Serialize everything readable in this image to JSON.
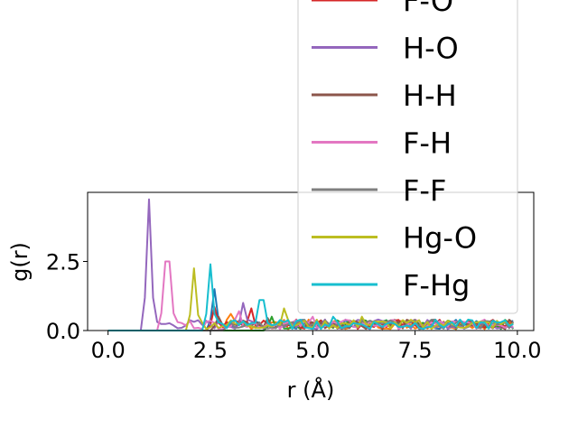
{
  "chart_data": {
    "type": "line",
    "xlabel": "r (Å)",
    "ylabel": "g(r)",
    "xlim": [
      -0.5,
      10.4
    ],
    "ylim": [
      0,
      5.0
    ],
    "xticks": [
      "0.0",
      "2.5",
      "5.0",
      "7.5",
      "10.0"
    ],
    "yticks": [
      "0.0",
      "2.5"
    ],
    "grid": false,
    "legend_placement": "upper-right, overflowing above axes",
    "series": [
      {
        "name": "F-O",
        "color": "#d62728",
        "peaks": [
          [
            2.6,
            0.85
          ],
          [
            3.5,
            0.8
          ],
          [
            4.6,
            0.4
          ]
        ]
      },
      {
        "name": "H-O",
        "color": "#9467bd",
        "peaks": [
          [
            1.0,
            4.75
          ],
          [
            3.3,
            1.0
          ],
          [
            5.3,
            0.4
          ]
        ]
      },
      {
        "name": "H-H",
        "color": "#8c564b",
        "peaks": [
          [
            2.7,
            0.5
          ],
          [
            3.9,
            0.45
          ],
          [
            6.0,
            0.35
          ]
        ]
      },
      {
        "name": "F-H",
        "color": "#e377c2",
        "peaks": [
          [
            1.45,
            2.5
          ],
          [
            3.2,
            0.7
          ],
          [
            5.0,
            0.5
          ]
        ]
      },
      {
        "name": "F-F",
        "color": "#7f7f7f",
        "peaks": [
          [
            3.0,
            0.3
          ],
          [
            4.5,
            0.3
          ],
          [
            6.5,
            0.3
          ]
        ]
      },
      {
        "name": "Hg-O",
        "color": "#bcbd22",
        "peaks": [
          [
            2.1,
            2.25
          ],
          [
            4.3,
            0.8
          ],
          [
            6.2,
            0.5
          ]
        ]
      },
      {
        "name": "F-Hg",
        "color": "#17becf",
        "peaks": [
          [
            2.5,
            2.4
          ],
          [
            3.75,
            1.1
          ],
          [
            5.5,
            0.5
          ]
        ]
      }
    ],
    "extra_series_colors": [
      "#1f77b4",
      "#ff7f0e",
      "#2ca02c"
    ],
    "extra_series_peaks": [
      [
        2.6,
        1.5
      ],
      [
        3.0,
        0.6
      ],
      [
        4.0,
        0.5
      ]
    ]
  }
}
